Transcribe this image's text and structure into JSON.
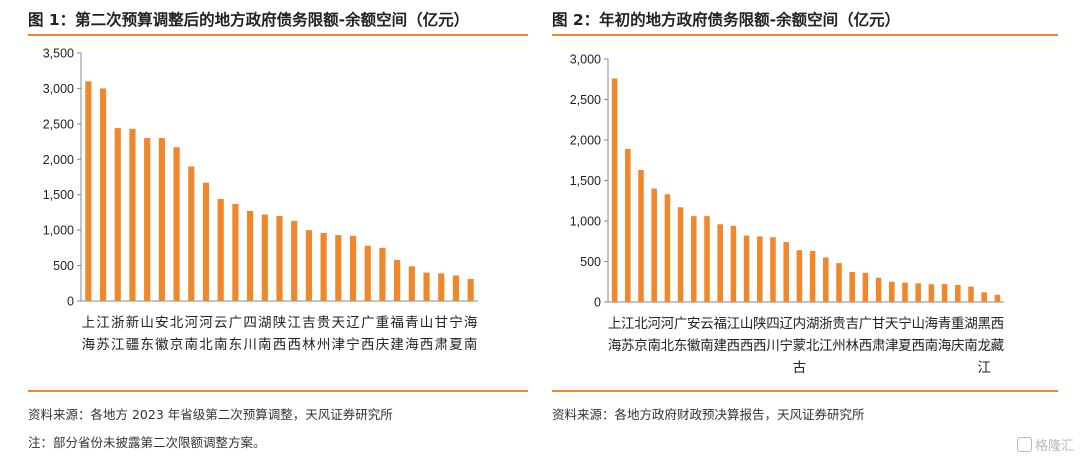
{
  "watermark": "格隆汇",
  "colors": {
    "bar": "#F0872B",
    "rule": "#F0872B"
  },
  "panels": [
    {
      "title": "图 1：第二次预算调整后的地方政府债务限额-余额空间（亿元）",
      "source": "资料来源：各地方 2023 年省级第二次预算调整，天风证券研究所",
      "note": "注：部分省份未披露第二次限额调整方案。"
    },
    {
      "title": "图 2：年初的地方政府债务限额-余额空间（亿元）",
      "source": "资料来源：各地方政府财政预决算报告，天风证券研究所"
    }
  ],
  "chart_data": [
    {
      "type": "bar",
      "categories": [
        "上海",
        "江苏",
        "浙江",
        "新疆",
        "山东",
        "安徽",
        "北京",
        "河南",
        "河北",
        "云南",
        "广东",
        "四川",
        "湖南",
        "陕西",
        "江西",
        "吉林",
        "贵州",
        "天津",
        "辽宁",
        "广西",
        "重庆",
        "福建",
        "青海",
        "山西",
        "甘肃",
        "宁夏",
        "海南"
      ],
      "values": [
        3100,
        3000,
        2440,
        2430,
        2300,
        2300,
        2170,
        1900,
        1670,
        1440,
        1370,
        1270,
        1220,
        1200,
        1130,
        1000,
        960,
        930,
        920,
        780,
        750,
        580,
        490,
        400,
        390,
        360,
        310
      ],
      "ylim": [
        0,
        3500
      ],
      "yticks": [
        0,
        500,
        1000,
        1500,
        2000,
        2500,
        3000,
        3500
      ],
      "ytick_labels": [
        "0",
        "500",
        "1,000",
        "1,500",
        "2,000",
        "2,500",
        "3,000",
        "3,500"
      ],
      "grid": false,
      "legend": "none"
    },
    {
      "type": "bar",
      "categories": [
        "上海",
        "江苏",
        "北京",
        "河南",
        "河北",
        "广东",
        "安徽",
        "云南",
        "福建",
        "江西",
        "山西",
        "陕西",
        "四川",
        "辽宁",
        "内蒙古",
        "湖北",
        "浙江",
        "贵州",
        "吉林",
        "广西",
        "甘肃",
        "天津",
        "宁夏",
        "山西",
        "海南",
        "青海",
        "重庆",
        "湖南",
        "黑龙江",
        "西藏"
      ],
      "values": [
        2760,
        1890,
        1630,
        1400,
        1330,
        1170,
        1060,
        1060,
        960,
        940,
        820,
        810,
        800,
        740,
        640,
        630,
        550,
        480,
        370,
        360,
        300,
        250,
        240,
        230,
        220,
        220,
        210,
        190,
        120,
        90
      ],
      "ylim": [
        0,
        3000
      ],
      "yticks": [
        0,
        500,
        1000,
        1500,
        2000,
        2500,
        3000
      ],
      "ytick_labels": [
        "0",
        "500",
        "1,000",
        "1,500",
        "2,000",
        "2,500",
        "3,000"
      ],
      "grid": false,
      "legend": "none"
    }
  ]
}
